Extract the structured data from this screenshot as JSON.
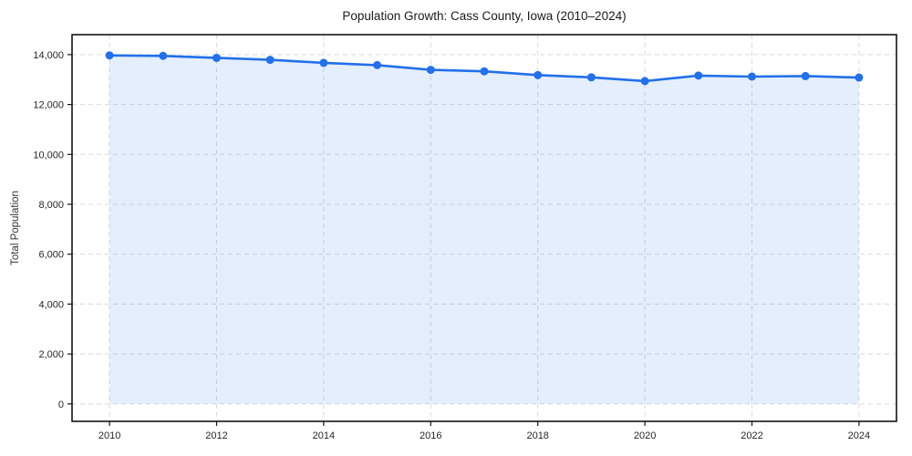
{
  "chart_data": {
    "type": "area",
    "title": "Population Growth: Cass County, Iowa (2010–2024)",
    "xlabel": "",
    "ylabel": "Total Population",
    "x": [
      2010,
      2011,
      2012,
      2013,
      2014,
      2015,
      2016,
      2017,
      2018,
      2019,
      2020,
      2021,
      2022,
      2023,
      2024
    ],
    "series": [
      {
        "name": "Total Population",
        "values": [
          13970,
          13950,
          13870,
          13790,
          13670,
          13580,
          13390,
          13330,
          13180,
          13090,
          12940,
          13160,
          13120,
          13140,
          13080
        ]
      }
    ],
    "xlim": [
      2009.3,
      2024.7
    ],
    "ylim": [
      -700,
      14800
    ],
    "xticks": [
      2010,
      2012,
      2014,
      2016,
      2018,
      2020,
      2022,
      2024
    ],
    "yticks": [
      0,
      2000,
      4000,
      6000,
      8000,
      10000,
      12000,
      14000
    ],
    "grid": true,
    "grid_style": "dashed",
    "legend": false,
    "fill_baseline": 0,
    "colors": {
      "line": "#2470e8",
      "marker": "#2470e8",
      "fill": "#2470e8",
      "fill_opacity": 0.12,
      "grid": "#d9d9d9",
      "spine": "#141414",
      "tick_label": "#262626",
      "background": "#ffffff"
    }
  }
}
